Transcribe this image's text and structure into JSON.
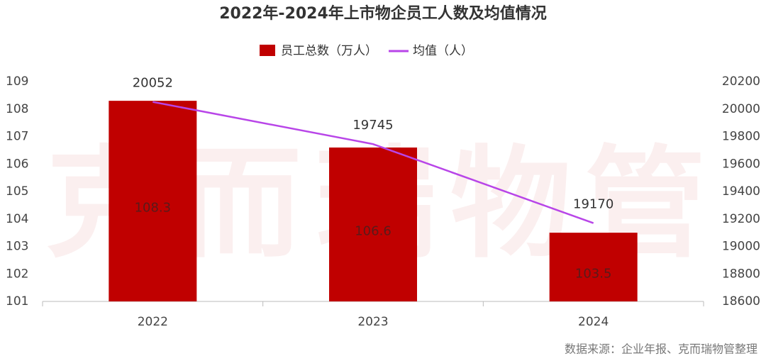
{
  "chart_data": {
    "type": "bar",
    "title": "2022年-2024年上市物企员工人数及均值情况",
    "watermark": "克而瑞物管",
    "source": "数据来源：企业年报、克而瑞物管整理",
    "categories": [
      "2022",
      "2023",
      "2024"
    ],
    "series": [
      {
        "name": "员工总数（万人）",
        "type": "bar",
        "color": "#c00000",
        "values": [
          108.3,
          106.6,
          103.5
        ]
      },
      {
        "name": "均值（人）",
        "type": "line",
        "axis": "y2",
        "color": "#b845e8",
        "values": [
          20052,
          19745,
          19170
        ]
      }
    ],
    "ylim": [
      101,
      109
    ],
    "yticks": [
      101,
      102,
      103,
      104,
      105,
      106,
      107,
      108,
      109
    ],
    "y2lim": [
      18600,
      20200
    ],
    "y2ticks": [
      18600,
      18800,
      19000,
      19200,
      19400,
      19600,
      19800,
      20000,
      20200
    ],
    "legend": "top"
  }
}
